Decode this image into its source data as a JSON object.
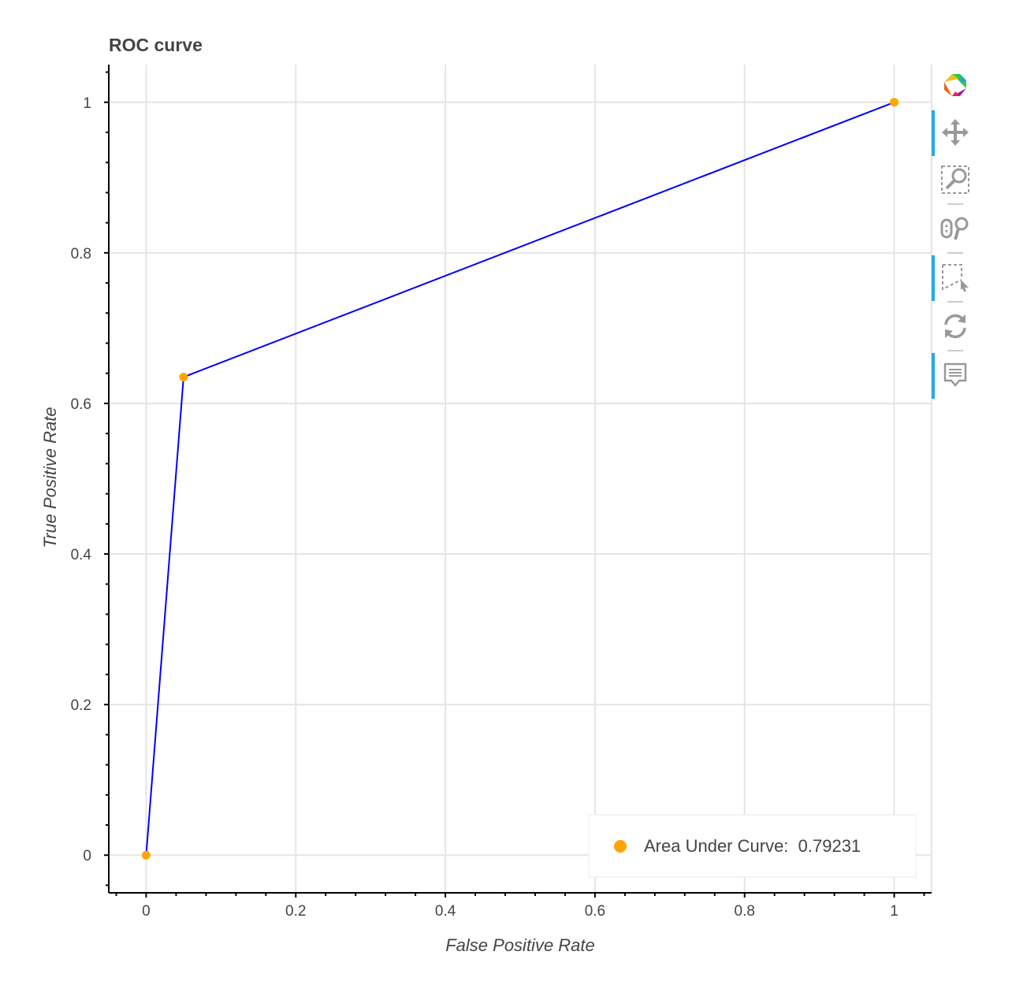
{
  "chart_data": {
    "type": "line",
    "title": "ROC curve",
    "xlabel": "False Positive Rate",
    "ylabel": "True Positive Rate",
    "xlim": [
      -0.05,
      1.05
    ],
    "ylim": [
      -0.05,
      1.05
    ],
    "x_ticks": [
      "0",
      "0.2",
      "0.4",
      "0.6",
      "0.8",
      "1"
    ],
    "y_ticks": [
      "0",
      "0.2",
      "0.4",
      "0.6",
      "0.8",
      "1"
    ],
    "grid": true,
    "series": [
      {
        "x": [
          0,
          0.05,
          1
        ],
        "y": [
          0,
          0.635,
          1
        ],
        "line_color": "#0000ff",
        "marker_color": "#ffa500"
      }
    ],
    "legend": {
      "label": "Area Under Curve:  0.79231",
      "placement": "bottom-right",
      "marker_color": "#ffa500"
    }
  },
  "toolbar": {
    "tools": [
      {
        "name": "bokeh-logo-icon",
        "active": false
      },
      {
        "name": "pan-icon",
        "active": true
      },
      {
        "name": "box-zoom-icon",
        "active": false
      },
      {
        "name": "wheel-zoom-icon",
        "active": false
      },
      {
        "name": "lasso-select-icon",
        "active": true
      },
      {
        "name": "reset-icon",
        "active": false
      },
      {
        "name": "hover-icon",
        "active": true
      }
    ],
    "accent_color": "#26aae1"
  }
}
